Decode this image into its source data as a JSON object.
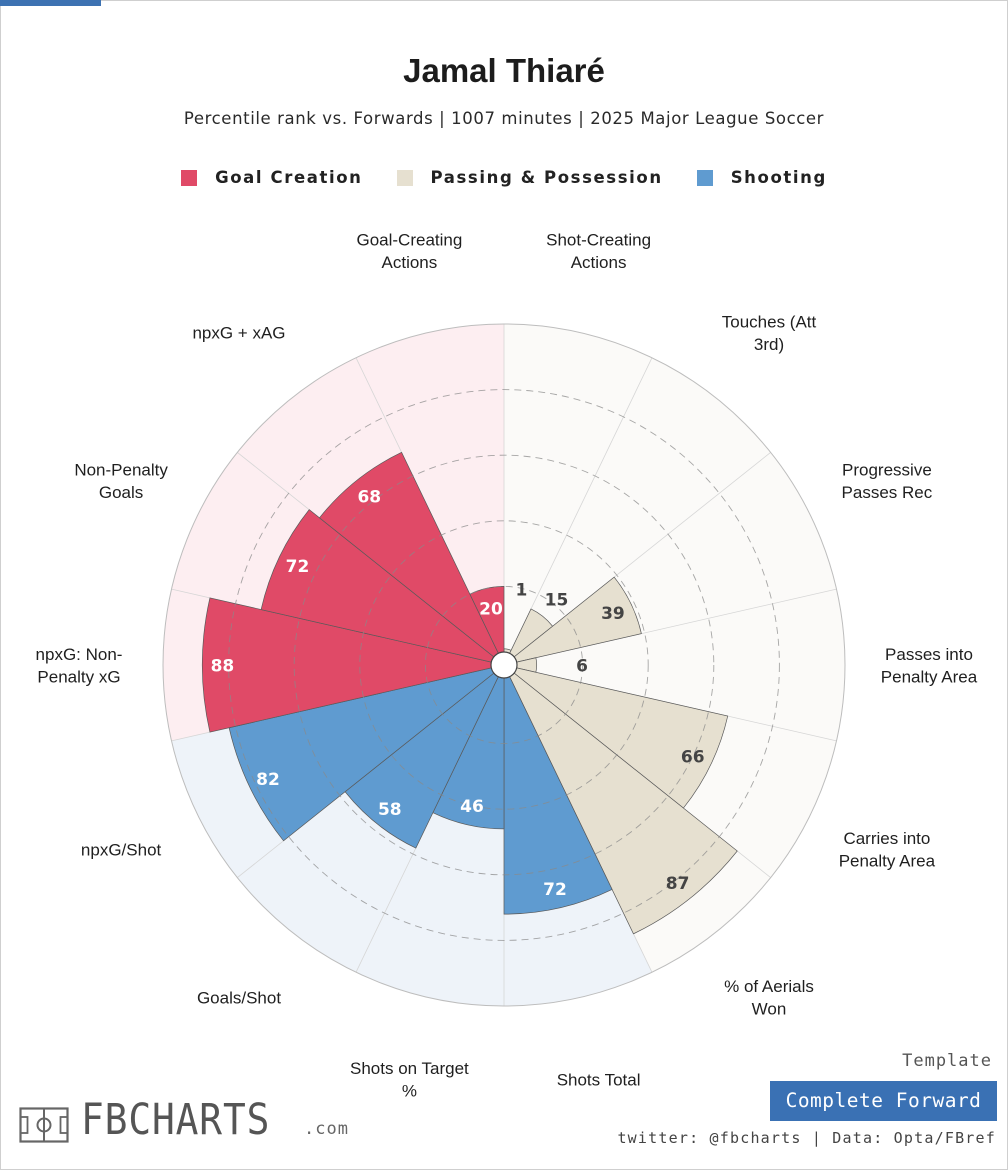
{
  "header": {
    "title": "Jamal Thiaré",
    "subtitle": "Percentile rank vs. Forwards | 1007 minutes | 2025 Major League Soccer"
  },
  "legend": [
    {
      "label": "Goal Creation",
      "color": "#e04a67"
    },
    {
      "label": "Passing & Possession",
      "color": "#e6e0d0"
    },
    {
      "label": "Shooting",
      "color": "#5f9bd0"
    }
  ],
  "chart_data": {
    "type": "polar-bar",
    "range": [
      0,
      100
    ],
    "gridlines": [
      20,
      40,
      60,
      80
    ],
    "grid": true,
    "categories": [
      {
        "label": "Shot-Creating Actions",
        "group": "Passing & Possession",
        "value": 1,
        "lines": [
          "Shot-Creating",
          "Actions"
        ]
      },
      {
        "label": "Touches (Att 3rd)",
        "group": "Passing & Possession",
        "value": 15,
        "lines": [
          "Touches (Att",
          "3rd)"
        ]
      },
      {
        "label": "Progressive Passes Rec",
        "group": "Passing & Possession",
        "value": 39,
        "lines": [
          "Progressive",
          "Passes Rec"
        ]
      },
      {
        "label": "Passes into Penalty Area",
        "group": "Passing & Possession",
        "value": 6,
        "lines": [
          "Passes into",
          "Penalty Area"
        ]
      },
      {
        "label": "Carries into Penalty Area",
        "group": "Passing & Possession",
        "value": 66,
        "lines": [
          "Carries into",
          "Penalty Area"
        ]
      },
      {
        "label": "% of Aerials Won",
        "group": "Passing & Possession",
        "value": 87,
        "lines": [
          "% of Aerials",
          "Won"
        ]
      },
      {
        "label": "Shots Total",
        "group": "Shooting",
        "value": 72,
        "lines": [
          "Shots Total"
        ]
      },
      {
        "label": "Shots on Target %",
        "group": "Shooting",
        "value": 46,
        "lines": [
          "Shots on Target",
          "%"
        ]
      },
      {
        "label": "Goals/Shot",
        "group": "Shooting",
        "value": 58,
        "lines": [
          "Goals/Shot"
        ]
      },
      {
        "label": "npxG/Shot",
        "group": "Shooting",
        "value": 82,
        "lines": [
          "npxG/Shot"
        ]
      },
      {
        "label": "npxG: Non-Penalty xG",
        "group": "Goal Creation",
        "value": 88,
        "lines": [
          "npxG: Non-",
          "Penalty xG"
        ]
      },
      {
        "label": "Non-Penalty Goals",
        "group": "Goal Creation",
        "value": 72,
        "lines": [
          "Non-Penalty",
          "Goals"
        ]
      },
      {
        "label": "npxG + xAG",
        "group": "Goal Creation",
        "value": 68,
        "lines": [
          "npxG + xAG"
        ]
      },
      {
        "label": "Goal-Creating Actions",
        "group": "Goal Creation",
        "value": 20,
        "lines": [
          "Goal-Creating",
          "Actions"
        ]
      }
    ],
    "colors": {
      "Goal Creation": {
        "fill": "#e04a67",
        "bg": "#fdeef1"
      },
      "Passing & Possession": {
        "fill": "#e6e0d0",
        "bg": "#fbfaf8"
      },
      "Shooting": {
        "fill": "#5f9bd0",
        "bg": "#eef3f9"
      }
    }
  },
  "footer": {
    "template_label": "Template",
    "template_name": "Complete Forward",
    "credit": "twitter: @fbcharts | Data: Opta/FBref",
    "brand": "FBCHARTS",
    "brand_suffix": ".com"
  }
}
